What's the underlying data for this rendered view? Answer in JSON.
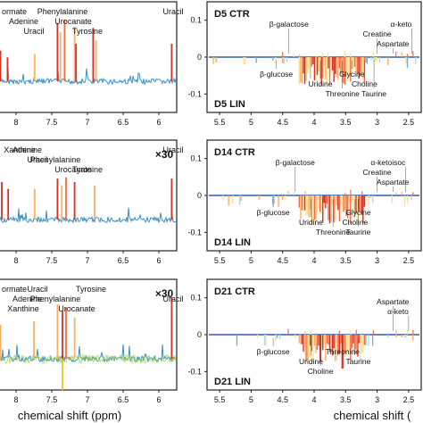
{
  "chart_data": [
    {
      "type": "line",
      "panel": "left-top",
      "x_ticks": [
        8.0,
        7.5,
        7.0,
        6.5,
        6.0
      ],
      "xlim": [
        8.25,
        5.75
      ],
      "scale_label": "",
      "labels": [
        {
          "text": "ormate",
          "x": 8.2
        },
        {
          "text": "Adenine",
          "x": 8.1
        },
        {
          "text": "Uracil",
          "x": 7.75
        },
        {
          "text": "Phenylalanine",
          "x": 7.35
        },
        {
          "text": "Urocanate",
          "x": 7.2
        },
        {
          "text": "Tyrosine",
          "x": 7.0
        },
        {
          "text": "Uracil",
          "x": 5.8
        }
      ],
      "peaks": [
        {
          "x": 8.22,
          "h": 0.45,
          "color": "#d73027"
        },
        {
          "x": 8.12,
          "h": 0.35,
          "color": "#d73027"
        },
        {
          "x": 7.74,
          "h": 0.4,
          "color": "#fdae61"
        },
        {
          "x": 7.42,
          "h": 0.85,
          "color": "#d73027"
        },
        {
          "x": 7.38,
          "h": 0.72,
          "color": "#fdae61"
        },
        {
          "x": 7.32,
          "h": 0.9,
          "color": "#f46d43"
        },
        {
          "x": 7.18,
          "h": 0.8,
          "color": "#fdae61"
        },
        {
          "x": 7.16,
          "h": 0.55,
          "color": "#d73027"
        },
        {
          "x": 6.92,
          "h": 0.78,
          "color": "#d73027"
        },
        {
          "x": 6.88,
          "h": 0.6,
          "color": "#fdae61"
        },
        {
          "x": 5.82,
          "h": 0.55,
          "color": "#d73027"
        }
      ]
    },
    {
      "type": "line",
      "panel": "left-middle",
      "x_ticks": [
        8.0,
        7.5,
        7.0,
        6.5,
        6.0
      ],
      "xlim": [
        8.25,
        5.75
      ],
      "scale_label": "×30",
      "labels": [
        {
          "text": "Adenine",
          "x": 8.05
        },
        {
          "text": "Phenylalanine",
          "x": 7.45
        },
        {
          "text": "Urocanate",
          "x": 7.2
        },
        {
          "text": "Xanthine",
          "x": 7.95
        },
        {
          "text": "Uracil",
          "x": 7.7
        },
        {
          "text": "Tyrosine",
          "x": 7.0
        },
        {
          "text": "Uracil",
          "x": 5.8
        }
      ],
      "peaks": [
        {
          "x": 8.2,
          "h": 0.55,
          "color": "#d73027"
        },
        {
          "x": 8.11,
          "h": 0.45,
          "color": "#d73027"
        },
        {
          "x": 7.74,
          "h": 0.45,
          "color": "#fdae61"
        },
        {
          "x": 7.42,
          "h": 0.6,
          "color": "#d73027"
        },
        {
          "x": 7.36,
          "h": 0.5,
          "color": "#fdae61"
        },
        {
          "x": 7.3,
          "h": 0.62,
          "color": "#f46d43"
        },
        {
          "x": 7.18,
          "h": 0.55,
          "color": "#d73027"
        },
        {
          "x": 6.9,
          "h": 0.5,
          "color": "#fdae61"
        },
        {
          "x": 5.82,
          "h": 0.6,
          "color": "#d73027"
        }
      ]
    },
    {
      "type": "line",
      "panel": "left-bottom",
      "x_ticks": [
        8.0,
        7.5,
        7.0,
        6.5,
        6.0
      ],
      "xlim": [
        8.25,
        5.75
      ],
      "scale_label": "×30",
      "xlabel": "chemical shift (ppm)",
      "labels": [
        {
          "text": "ormate",
          "x": 8.2
        },
        {
          "text": "Adenine",
          "x": 8.05
        },
        {
          "text": "Xanthine",
          "x": 7.9
        },
        {
          "text": "Uracil",
          "x": 7.7
        },
        {
          "text": "Phenylalanine",
          "x": 7.45
        },
        {
          "text": "Urocanate",
          "x": 7.15
        },
        {
          "text": "Tyrosine",
          "x": 6.95
        },
        {
          "text": "Uracil",
          "x": 5.8
        }
      ],
      "peaks": [
        {
          "x": 8.22,
          "h": 0.5,
          "color": "#fdae61"
        },
        {
          "x": 7.75,
          "h": 0.55,
          "color": "#fdae61"
        },
        {
          "x": 7.42,
          "h": 0.8,
          "color": "#fdae61"
        },
        {
          "x": 7.35,
          "h": 0.7,
          "color": "#d73027"
        },
        {
          "x": 7.3,
          "h": 0.75,
          "color": "#f46d43"
        },
        {
          "x": 7.18,
          "h": 0.6,
          "color": "#fdae61"
        },
        {
          "x": 5.82,
          "h": 0.9,
          "color": "#d73027"
        }
      ]
    },
    {
      "type": "line",
      "panel": "right-top",
      "top_label": "D5 CTR",
      "bottom_label": "D5 LIN",
      "x_ticks": [
        5.5,
        5,
        4.5,
        4,
        3.5,
        3,
        2.5
      ],
      "xlim": [
        5.7,
        2.3
      ],
      "y_ticks": [
        0.1,
        0,
        -0.1
      ],
      "ylim": [
        -0.15,
        0.15
      ],
      "labels": [
        {
          "text": "β-galactose",
          "x": 4.4,
          "side": "top"
        },
        {
          "text": "β-glucose",
          "x": 4.6,
          "side": "bottom"
        },
        {
          "text": "Uridine",
          "x": 3.9,
          "side": "bottom"
        },
        {
          "text": "Threonine",
          "x": 3.55,
          "side": "bottom"
        },
        {
          "text": "Glycine",
          "x": 3.4,
          "side": "bottom"
        },
        {
          "text": "Choline",
          "x": 3.2,
          "side": "bottom"
        },
        {
          "text": "Taurine",
          "x": 3.05,
          "side": "bottom"
        },
        {
          "text": "Creatine",
          "x": 3.0,
          "side": "top"
        },
        {
          "text": "Aspartate",
          "x": 2.75,
          "side": "top"
        },
        {
          "text": "α-keto",
          "x": 2.45,
          "side": "top"
        }
      ]
    },
    {
      "type": "line",
      "panel": "right-middle",
      "top_label": "D14 CTR",
      "bottom_label": "D14 LIN",
      "x_ticks": [
        5.5,
        5.0,
        4.5,
        4.0,
        3.5,
        3.0,
        2.5
      ],
      "xlim": [
        5.7,
        2.3
      ],
      "y_ticks": [
        0.1,
        0,
        -0.1
      ],
      "ylim": [
        -0.15,
        0.15
      ],
      "labels": [
        {
          "text": "β-galactose",
          "x": 4.3,
          "side": "top"
        },
        {
          "text": "β-glucose",
          "x": 4.65,
          "side": "bottom"
        },
        {
          "text": "Uridine",
          "x": 4.05,
          "side": "bottom"
        },
        {
          "text": "Threonine",
          "x": 3.7,
          "side": "bottom"
        },
        {
          "text": "Glycine",
          "x": 3.3,
          "side": "bottom"
        },
        {
          "text": "Choline",
          "x": 3.35,
          "side": "bottom"
        },
        {
          "text": "Taurine",
          "x": 3.3,
          "side": "bottom"
        },
        {
          "text": "Creatine",
          "x": 3.0,
          "side": "top"
        },
        {
          "text": "Aspartate",
          "x": 2.75,
          "side": "top"
        },
        {
          "text": "α-ketoisoc",
          "x": 2.55,
          "side": "top"
        }
      ]
    },
    {
      "type": "line",
      "panel": "right-bottom",
      "top_label": "D21 CTR",
      "bottom_label": "D21 LIN",
      "x_ticks": [
        5.5,
        5.0,
        4.5,
        4.0,
        3.5,
        3.0,
        2.5
      ],
      "xlim": [
        5.7,
        2.3
      ],
      "y_ticks": [
        0.1,
        0,
        -0.1
      ],
      "ylim": [
        -0.15,
        0.15
      ],
      "xlabel": "chemical shift (",
      "labels": [
        {
          "text": "β-glucose",
          "x": 4.65,
          "side": "bottom"
        },
        {
          "text": "Uridine",
          "x": 4.05,
          "side": "bottom"
        },
        {
          "text": "Choline",
          "x": 3.9,
          "side": "bottom"
        },
        {
          "text": "Threonine",
          "x": 3.55,
          "side": "bottom"
        },
        {
          "text": "Taurine",
          "x": 3.3,
          "side": "bottom"
        },
        {
          "text": "Aspartate",
          "x": 2.75,
          "side": "top"
        },
        {
          "text": "α-keto",
          "x": 2.5,
          "side": "top"
        }
      ]
    }
  ]
}
